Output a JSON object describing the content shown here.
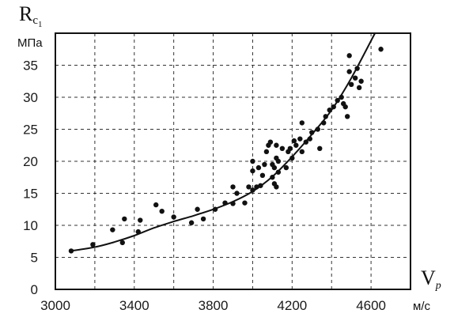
{
  "chart_data": {
    "type": "scatter",
    "xlabel": {
      "main": "V",
      "sub": "p",
      "unit": "м/с"
    },
    "ylabel": {
      "main": "R",
      "sub1": "c",
      "sub2": "1",
      "unit": "МПа"
    },
    "xlim": [
      3000,
      4800
    ],
    "ylim": [
      0,
      40
    ],
    "x_ticks": [
      3000,
      3400,
      3800,
      4200,
      4600
    ],
    "y_ticks": [
      0,
      5,
      10,
      15,
      20,
      25,
      30,
      35
    ],
    "grid": true,
    "grid_style": "dashed",
    "points": [
      [
        3080,
        6.0
      ],
      [
        3190,
        7.0
      ],
      [
        3290,
        9.3
      ],
      [
        3340,
        7.3
      ],
      [
        3350,
        11.0
      ],
      [
        3420,
        9.0
      ],
      [
        3430,
        10.8
      ],
      [
        3510,
        13.2
      ],
      [
        3540,
        12.2
      ],
      [
        3600,
        11.3
      ],
      [
        3690,
        10.4
      ],
      [
        3720,
        12.5
      ],
      [
        3750,
        11.0
      ],
      [
        3810,
        12.5
      ],
      [
        3860,
        13.5
      ],
      [
        3900,
        13.4
      ],
      [
        3900,
        16.0
      ],
      [
        3920,
        15.0
      ],
      [
        3960,
        13.5
      ],
      [
        3980,
        16.0
      ],
      [
        4000,
        15.5
      ],
      [
        4000,
        18.5
      ],
      [
        4000,
        20.0
      ],
      [
        4020,
        16.0
      ],
      [
        4030,
        19.0
      ],
      [
        4040,
        16.2
      ],
      [
        4050,
        17.8
      ],
      [
        4060,
        19.5
      ],
      [
        4070,
        21.5
      ],
      [
        4080,
        22.5
      ],
      [
        4090,
        23.0
      ],
      [
        4100,
        19.5
      ],
      [
        4100,
        17.5
      ],
      [
        4110,
        16.5
      ],
      [
        4110,
        19.0
      ],
      [
        4120,
        22.5
      ],
      [
        4120,
        20.5
      ],
      [
        4120,
        16.0
      ],
      [
        4130,
        20.0
      ],
      [
        4130,
        18.3
      ],
      [
        4150,
        22.0
      ],
      [
        4170,
        19.0
      ],
      [
        4180,
        21.5
      ],
      [
        4190,
        22.0
      ],
      [
        4200,
        20.5
      ],
      [
        4210,
        23.2
      ],
      [
        4220,
        22.5
      ],
      [
        4240,
        23.5
      ],
      [
        4250,
        26.0
      ],
      [
        4250,
        21.5
      ],
      [
        4270,
        23.0
      ],
      [
        4290,
        23.5
      ],
      [
        4300,
        24.5
      ],
      [
        4330,
        25.0
      ],
      [
        4340,
        22.0
      ],
      [
        4360,
        26.0
      ],
      [
        4370,
        27.0
      ],
      [
        4390,
        28.0
      ],
      [
        4410,
        28.5
      ],
      [
        4430,
        29.5
      ],
      [
        4450,
        30.0
      ],
      [
        4460,
        29.0
      ],
      [
        4470,
        28.5
      ],
      [
        4480,
        27.0
      ],
      [
        4490,
        36.5
      ],
      [
        4490,
        34.0
      ],
      [
        4500,
        32.0
      ],
      [
        4520,
        33.0
      ],
      [
        4530,
        34.5
      ],
      [
        4540,
        31.5
      ],
      [
        4550,
        32.5
      ],
      [
        4650,
        37.5
      ]
    ],
    "trend_curve": [
      [
        3080,
        6.0
      ],
      [
        3200,
        6.6
      ],
      [
        3300,
        7.4
      ],
      [
        3400,
        8.4
      ],
      [
        3500,
        9.6
      ],
      [
        3600,
        10.6
      ],
      [
        3700,
        11.5
      ],
      [
        3800,
        12.5
      ],
      [
        3900,
        13.7
      ],
      [
        4000,
        15.3
      ],
      [
        4100,
        17.6
      ],
      [
        4200,
        20.7
      ],
      [
        4300,
        24.2
      ],
      [
        4400,
        28.0
      ],
      [
        4500,
        33.0
      ],
      [
        4620,
        40.0
      ]
    ],
    "colors": {
      "ink": "#111111",
      "grid": "#333333",
      "background": "#ffffff"
    }
  }
}
